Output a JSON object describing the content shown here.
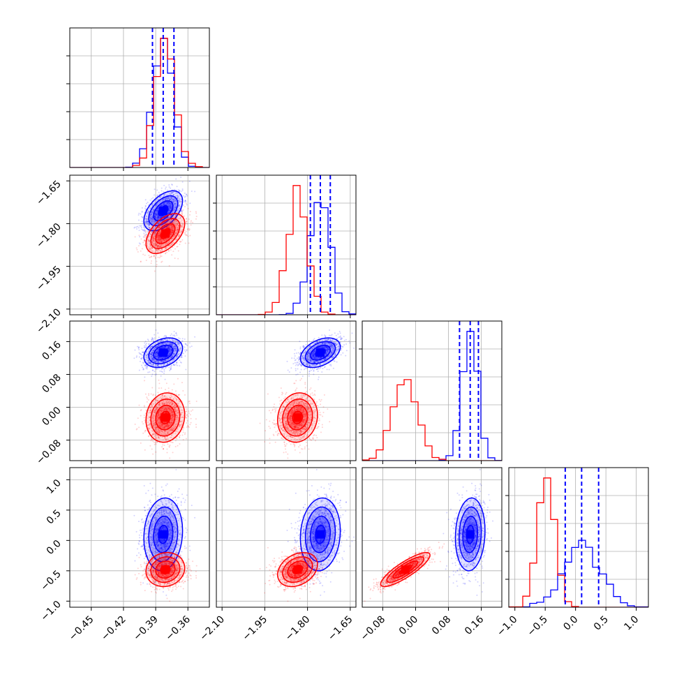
{
  "chart_data": {
    "type": "corner",
    "parameters": 4,
    "title": "",
    "grid": true,
    "colors": {
      "series_a": "#0000ff",
      "series_b": "#ff0000",
      "frame": "#000000",
      "grid": "#b0b0b0"
    },
    "axes": [
      {
        "range": [
          -0.47,
          -0.34
        ],
        "ticks": [
          -0.45,
          -0.42,
          -0.39,
          -0.36
        ],
        "tick_labels": [
          "−0.45",
          "−0.42",
          "−0.39",
          "−0.36"
        ]
      },
      {
        "range": [
          -2.12,
          -1.63
        ],
        "ticks": [
          -2.1,
          -1.95,
          -1.8,
          -1.65
        ],
        "tick_labels": [
          "−2.10",
          "−1.95",
          "−1.80",
          "−1.65"
        ]
      },
      {
        "range": [
          -0.13,
          0.21
        ],
        "ticks": [
          -0.08,
          0.0,
          0.08,
          0.16
        ],
        "tick_labels": [
          "−0.08",
          "0.00",
          "0.08",
          "0.16"
        ]
      },
      {
        "range": [
          -1.1,
          1.2
        ],
        "ticks": [
          -1.0,
          -0.5,
          0.0,
          0.5,
          1.0
        ],
        "tick_labels": [
          "−1.0",
          "−0.5",
          "0.0",
          "0.5",
          "1.0"
        ]
      }
    ],
    "series": [
      {
        "color": "#0000ff",
        "mean": [
          -0.383,
          -1.755,
          0.133,
          0.1
        ],
        "sd": [
          0.009,
          0.035,
          0.018,
          0.3
        ],
        "corr": [
          [
            1,
            0.5,
            0.3,
            0.1
          ],
          [
            0.5,
            1,
            0.4,
            0.1
          ],
          [
            0.3,
            0.4,
            1,
            0.1
          ],
          [
            0.1,
            0.1,
            0.1,
            1
          ]
        ],
        "quantiles": [
          [
            -0.393,
            -0.383,
            -0.373
          ],
          [
            -1.79,
            -1.755,
            -1.72
          ],
          [
            0.107,
            0.133,
            0.153
          ],
          [
            -0.17,
            0.1,
            0.38
          ]
        ]
      },
      {
        "color": "#ff0000",
        "mean": [
          -0.381,
          -1.835,
          -0.025,
          -0.48
        ],
        "sd": [
          0.009,
          0.035,
          0.03,
          0.14
        ],
        "corr": [
          [
            1,
            0.5,
            0.1,
            0.1
          ],
          [
            0.5,
            1,
            0.1,
            0.3
          ],
          [
            0.1,
            0.1,
            1,
            0.85
          ],
          [
            0.1,
            0.3,
            0.85,
            1
          ]
        ],
        "quantiles": null
      }
    ]
  }
}
